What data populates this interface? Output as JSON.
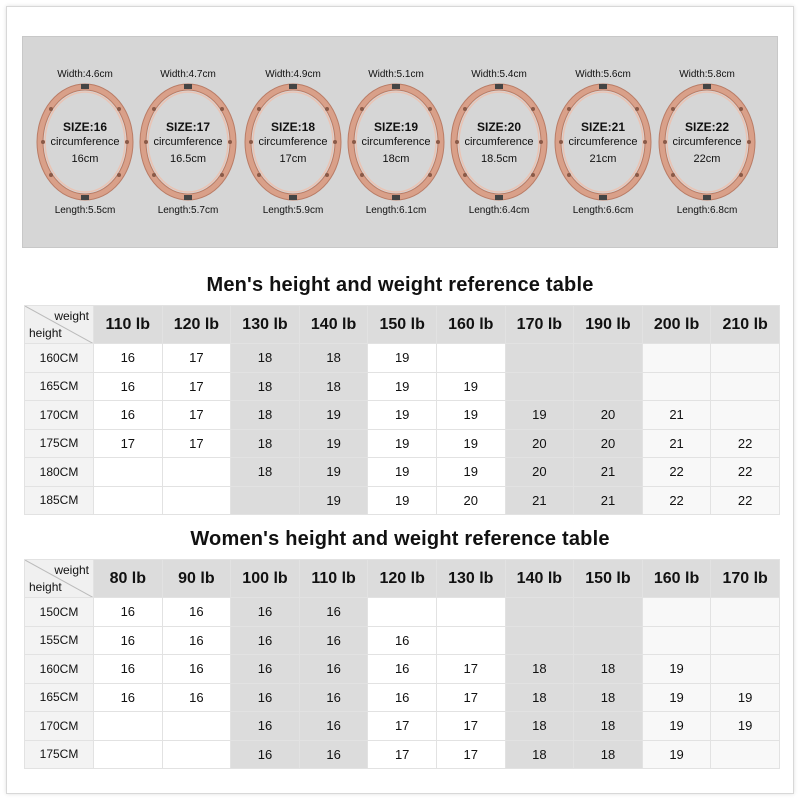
{
  "bracelets": [
    {
      "width": "Width:4.6cm",
      "size": "SIZE:16",
      "circumference_word": "circumference",
      "circumference": "16cm",
      "length": "Length:5.5cm"
    },
    {
      "width": "Width:4.7cm",
      "size": "SIZE:17",
      "circumference_word": "circumference",
      "circumference": "16.5cm",
      "length": "Length:5.7cm"
    },
    {
      "width": "Width:4.9cm",
      "size": "SIZE:18",
      "circumference_word": "circumference",
      "circumference": "17cm",
      "length": "Length:5.9cm"
    },
    {
      "width": "Width:5.1cm",
      "size": "SIZE:19",
      "circumference_word": "circumference",
      "circumference": "18cm",
      "length": "Length:6.1cm"
    },
    {
      "width": "Width:5.4cm",
      "size": "SIZE:20",
      "circumference_word": "circumference",
      "circumference": "18.5cm",
      "length": "Length:6.4cm"
    },
    {
      "width": "Width:5.6cm",
      "size": "SIZE:21",
      "circumference_word": "circumference",
      "circumference": "21cm",
      "length": "Length:6.6cm"
    },
    {
      "width": "Width:5.8cm",
      "size": "SIZE:22",
      "circumference_word": "circumference",
      "circumference": "22cm",
      "length": "Length:6.8cm"
    }
  ],
  "colors": {
    "bracelet": "#d9a089",
    "bracelet_dark": "#b97c66",
    "panel": "#d6d6d6",
    "shade": "#dcdcdc"
  },
  "men": {
    "title": "Men's height and weight reference table",
    "corner_weight": "weight",
    "corner_height": "height",
    "weights": [
      "110 lb",
      "120 lb",
      "130 lb",
      "140 lb",
      "150 lb",
      "160 lb",
      "170 lb",
      "190 lb",
      "200 lb",
      "210 lb"
    ],
    "rows": [
      {
        "height": "160CM",
        "values": [
          "16",
          "17",
          "18",
          "18",
          "19",
          "",
          "",
          "",
          "",
          ""
        ]
      },
      {
        "height": "165CM",
        "values": [
          "16",
          "17",
          "18",
          "18",
          "19",
          "19",
          "",
          "",
          "",
          ""
        ]
      },
      {
        "height": "170CM",
        "values": [
          "16",
          "17",
          "18",
          "19",
          "19",
          "19",
          "19",
          "20",
          "21",
          ""
        ]
      },
      {
        "height": "175CM",
        "values": [
          "17",
          "17",
          "18",
          "19",
          "19",
          "19",
          "20",
          "20",
          "21",
          "22"
        ]
      },
      {
        "height": "180CM",
        "values": [
          "",
          "",
          "18",
          "19",
          "19",
          "19",
          "20",
          "21",
          "22",
          "22"
        ]
      },
      {
        "height": "185CM",
        "values": [
          "",
          "",
          "",
          "19",
          "19",
          "20",
          "21",
          "21",
          "22",
          "22"
        ]
      }
    ]
  },
  "women": {
    "title": "Women's height and weight reference table",
    "corner_weight": "weight",
    "corner_height": "height",
    "weights": [
      "80 lb",
      "90 lb",
      "100 lb",
      "110 lb",
      "120 lb",
      "130 lb",
      "140 lb",
      "150 lb",
      "160 lb",
      "170 lb"
    ],
    "rows": [
      {
        "height": "150CM",
        "values": [
          "16",
          "16",
          "16",
          "16",
          "",
          "",
          "",
          "",
          "",
          ""
        ]
      },
      {
        "height": "155CM",
        "values": [
          "16",
          "16",
          "16",
          "16",
          "16",
          "",
          "",
          "",
          "",
          ""
        ]
      },
      {
        "height": "160CM",
        "values": [
          "16",
          "16",
          "16",
          "16",
          "16",
          "17",
          "18",
          "18",
          "19",
          ""
        ]
      },
      {
        "height": "165CM",
        "values": [
          "16",
          "16",
          "16",
          "16",
          "16",
          "17",
          "18",
          "18",
          "19",
          "19"
        ]
      },
      {
        "height": "170CM",
        "values": [
          "",
          "",
          "16",
          "16",
          "17",
          "17",
          "18",
          "18",
          "19",
          "19"
        ]
      },
      {
        "height": "175CM",
        "values": [
          "",
          "",
          "16",
          "16",
          "17",
          "17",
          "18",
          "18",
          "19",
          ""
        ]
      }
    ]
  }
}
